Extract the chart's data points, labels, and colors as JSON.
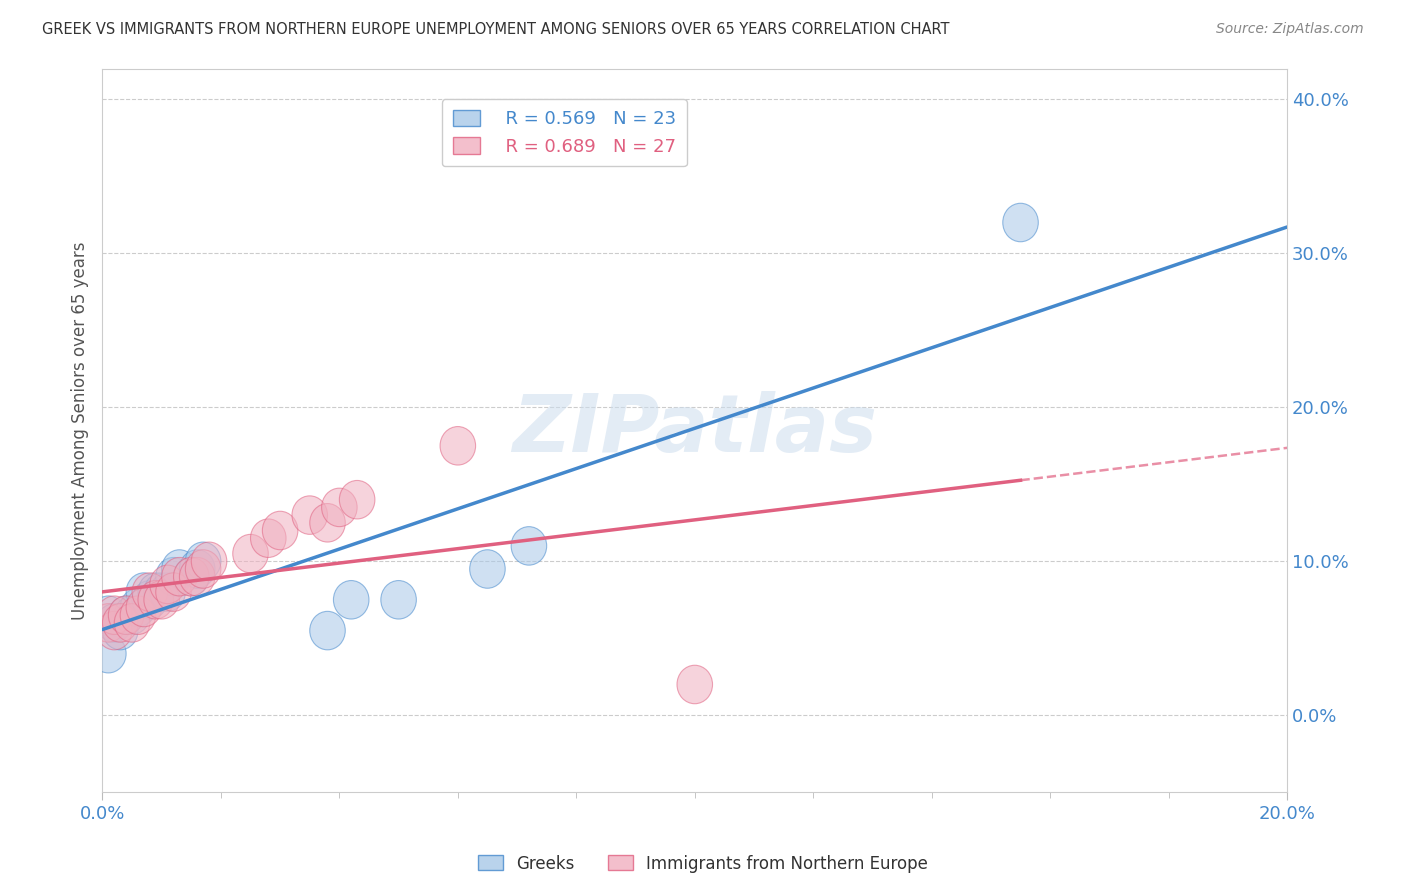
{
  "title": "GREEK VS IMMIGRANTS FROM NORTHERN EUROPE UNEMPLOYMENT AMONG SENIORS OVER 65 YEARS CORRELATION CHART",
  "source": "Source: ZipAtlas.com",
  "ylabel": "Unemployment Among Seniors over 65 years",
  "xlim": [
    0.0,
    0.2
  ],
  "ylim": [
    -0.05,
    0.42
  ],
  "yticks": [
    0.0,
    0.1,
    0.2,
    0.3,
    0.4
  ],
  "xticks_major": [
    0.0,
    0.2
  ],
  "xticks_minor": [
    0.02,
    0.04,
    0.06,
    0.08,
    0.1,
    0.12,
    0.14,
    0.16,
    0.18
  ],
  "legend_r1": "R = 0.569",
  "legend_n1": "N = 23",
  "legend_r2": "R = 0.689",
  "legend_n2": "N = 27",
  "color_blue": "#a8c8e8",
  "color_pink": "#f0b0c0",
  "color_blue_line": "#4488cc",
  "color_pink_line": "#e06080",
  "background": "#ffffff",
  "greeks_x": [
    0.001,
    0.001,
    0.002,
    0.003,
    0.004,
    0.005,
    0.006,
    0.007,
    0.008,
    0.009,
    0.01,
    0.011,
    0.012,
    0.013,
    0.015,
    0.016,
    0.017,
    0.038,
    0.042,
    0.05,
    0.065,
    0.072,
    0.155
  ],
  "greeks_y": [
    0.04,
    0.065,
    0.06,
    0.055,
    0.065,
    0.065,
    0.07,
    0.08,
    0.075,
    0.08,
    0.08,
    0.08,
    0.09,
    0.095,
    0.09,
    0.095,
    0.1,
    0.055,
    0.075,
    0.075,
    0.095,
    0.11,
    0.32
  ],
  "immig_x": [
    0.001,
    0.002,
    0.002,
    0.003,
    0.004,
    0.005,
    0.006,
    0.007,
    0.008,
    0.009,
    0.01,
    0.011,
    0.012,
    0.013,
    0.015,
    0.016,
    0.017,
    0.018,
    0.025,
    0.028,
    0.03,
    0.035,
    0.038,
    0.04,
    0.043,
    0.06,
    0.1
  ],
  "immig_y": [
    0.06,
    0.055,
    0.065,
    0.06,
    0.065,
    0.06,
    0.065,
    0.07,
    0.08,
    0.075,
    0.075,
    0.085,
    0.08,
    0.09,
    0.09,
    0.09,
    0.095,
    0.1,
    0.105,
    0.115,
    0.12,
    0.13,
    0.125,
    0.135,
    0.14,
    0.175,
    0.02
  ]
}
